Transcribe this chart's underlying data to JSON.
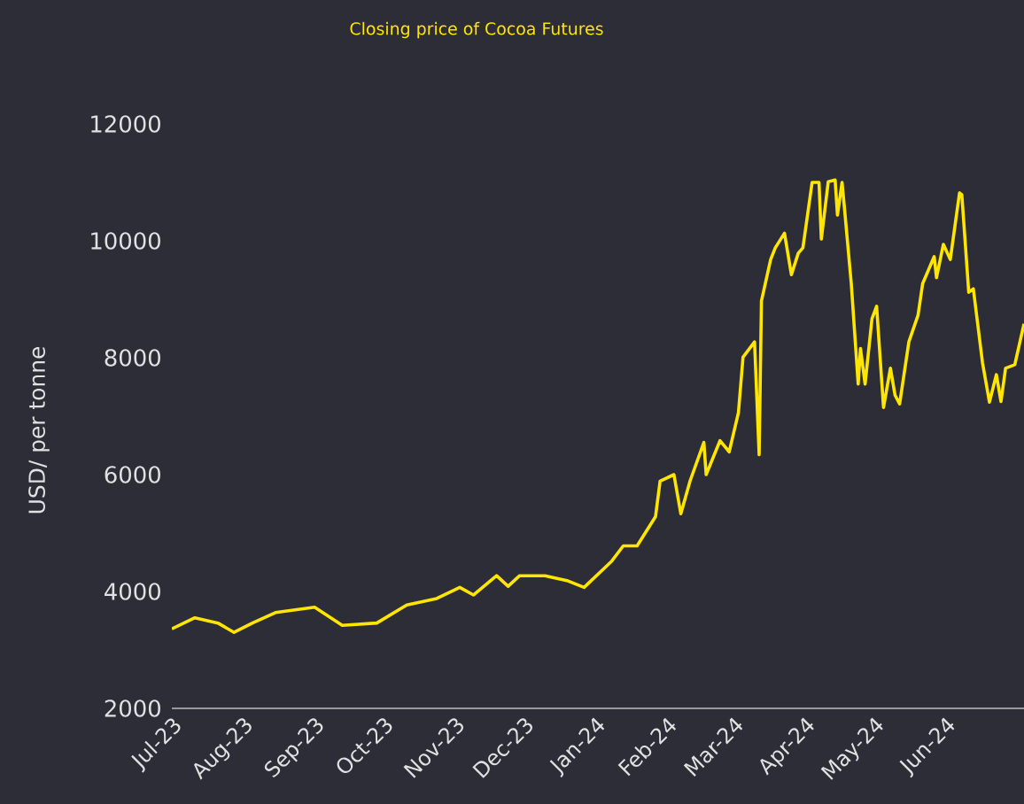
{
  "chart_data": {
    "type": "line",
    "title": "Closing price of Cocoa Futures",
    "ylabel": "USD/ per tonne",
    "x": [
      "2023-07-01",
      "2023-07-11",
      "2023-07-21",
      "2023-07-28",
      "2023-08-05",
      "2023-08-15",
      "2023-09-01",
      "2023-09-13",
      "2023-09-28",
      "2023-10-11",
      "2023-10-24",
      "2023-11-03",
      "2023-11-09",
      "2023-11-19",
      "2023-11-24",
      "2023-11-29",
      "2023-12-10",
      "2023-12-20",
      "2023-12-27",
      "2024-01-08",
      "2024-01-13",
      "2024-01-19",
      "2024-01-27",
      "2024-01-29",
      "2024-02-04",
      "2024-02-07",
      "2024-02-11",
      "2024-02-17",
      "2024-02-18",
      "2024-02-24",
      "2024-02-28",
      "2024-03-03",
      "2024-03-05",
      "2024-03-10",
      "2024-03-12",
      "2024-03-13",
      "2024-03-17",
      "2024-03-19",
      "2024-03-23",
      "2024-03-26",
      "2024-03-29",
      "2024-03-31",
      "2024-04-02",
      "2024-04-04",
      "2024-04-07",
      "2024-04-08",
      "2024-04-11",
      "2024-04-14",
      "2024-04-15",
      "2024-04-17",
      "2024-04-18",
      "2024-04-21",
      "2024-04-24",
      "2024-04-25",
      "2024-04-27",
      "2024-04-30",
      "2024-05-02",
      "2024-05-05",
      "2024-05-08",
      "2024-05-10",
      "2024-05-12",
      "2024-05-16",
      "2024-05-20",
      "2024-05-22",
      "2024-05-27",
      "2024-05-28",
      "2024-05-31",
      "2024-06-03",
      "2024-06-07",
      "2024-06-08",
      "2024-06-11",
      "2024-06-13",
      "2024-06-17",
      "2024-06-20",
      "2024-06-23",
      "2024-06-25",
      "2024-06-27",
      "2024-07-01",
      "2024-07-05"
    ],
    "series": [
      {
        "color": "#ffe600",
        "values": [
          3360,
          3550,
          3460,
          3300,
          3460,
          3640,
          3730,
          3420,
          3460,
          3770,
          3880,
          4070,
          3940,
          4270,
          4090,
          4270,
          4270,
          4180,
          4070,
          4520,
          4780,
          4780,
          5280,
          5890,
          6000,
          5330,
          5890,
          6550,
          6000,
          6580,
          6390,
          7060,
          8010,
          8270,
          6340,
          8970,
          9680,
          9880,
          10130,
          9420,
          9790,
          9880,
          10440,
          11000,
          11000,
          10030,
          11010,
          11040,
          10440,
          11000,
          10580,
          9270,
          7550,
          8160,
          7550,
          8670,
          8880,
          7150,
          7820,
          7360,
          7210,
          8270,
          8730,
          9270,
          9730,
          9370,
          9940,
          9680,
          10820,
          10790,
          9120,
          9180,
          7910,
          7240,
          7710,
          7250,
          7820,
          7880,
          8580
        ]
      }
    ],
    "xlim": [
      "2023-07-01",
      "2024-07-05"
    ],
    "xticks": [
      {
        "value": "2023-07-01",
        "label": "Jul-23"
      },
      {
        "value": "2023-08-01",
        "label": "Aug-23"
      },
      {
        "value": "2023-09-01",
        "label": "Sep-23"
      },
      {
        "value": "2023-10-01",
        "label": "Oct-23"
      },
      {
        "value": "2023-11-01",
        "label": "Nov-23"
      },
      {
        "value": "2023-12-01",
        "label": "Dec-23"
      },
      {
        "value": "2024-01-01",
        "label": "Jan-24"
      },
      {
        "value": "2024-02-01",
        "label": "Feb-24"
      },
      {
        "value": "2024-03-01",
        "label": "Mar-24"
      },
      {
        "value": "2024-04-01",
        "label": "Apr-24"
      },
      {
        "value": "2024-05-01",
        "label": "May-24"
      },
      {
        "value": "2024-06-01",
        "label": "Jun-24"
      }
    ],
    "ylim": [
      2000,
      12000
    ],
    "yticks": [
      2000,
      4000,
      6000,
      8000,
      10000,
      12000
    ],
    "grid": false,
    "marker": "none",
    "line_style": "solid"
  }
}
